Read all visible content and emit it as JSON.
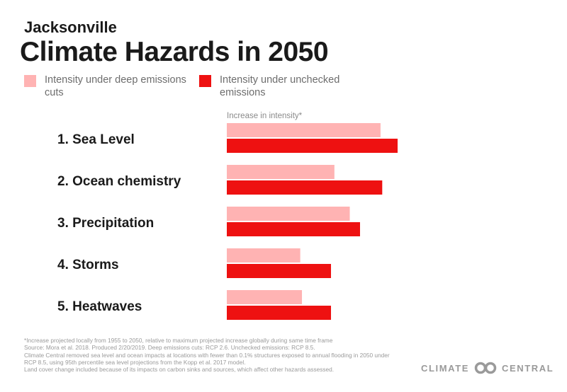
{
  "header": {
    "subtitle": "Jacksonville",
    "title": "Climate Hazards in 2050"
  },
  "legend": [
    {
      "label": "Intensity under deep emissions cuts",
      "color": "#ffb3b3"
    },
    {
      "label": "Intensity under unchecked emissions",
      "color": "#ee1111"
    }
  ],
  "chart_data": {
    "type": "bar",
    "orientation": "horizontal",
    "axis_label": "Increase in intensity*",
    "categories": [
      "1. Sea Level",
      "2. Ocean chemistry",
      "3. Precipitation",
      "4. Storms",
      "5. Heatwaves"
    ],
    "series": [
      {
        "name": "Intensity under deep emissions cuts",
        "color": "#ffb3b3",
        "values": [
          0.9,
          0.63,
          0.72,
          0.43,
          0.44
        ]
      },
      {
        "name": "Intensity under unchecked emissions",
        "color": "#ee1111",
        "values": [
          1.0,
          0.91,
          0.78,
          0.61,
          0.61
        ]
      }
    ]
  },
  "footnote": [
    "*Increase projected locally from 1955 to 2050, relative to maximum projected increase globally during same time frame",
    "Source: Mora et al. 2018. Produced 2/20/2019. Deep emissions cuts: RCP 2.6. Unchecked emissions: RCP 8.5.",
    "Climate Central removed sea level and ocean impacts at locations with fewer than 0.1% structures exposed to annual flooding in 2050 under RCP 8.5, using 95th percentile sea level projections from the Kopp et al. 2017 model.",
    "Land cover change included because of its impacts on carbon sinks and sources, which affect other hazards assessed."
  ],
  "logo": {
    "left": "CLIMATE",
    "right": "CENTRAL",
    "icon": "linked-circles-icon"
  }
}
